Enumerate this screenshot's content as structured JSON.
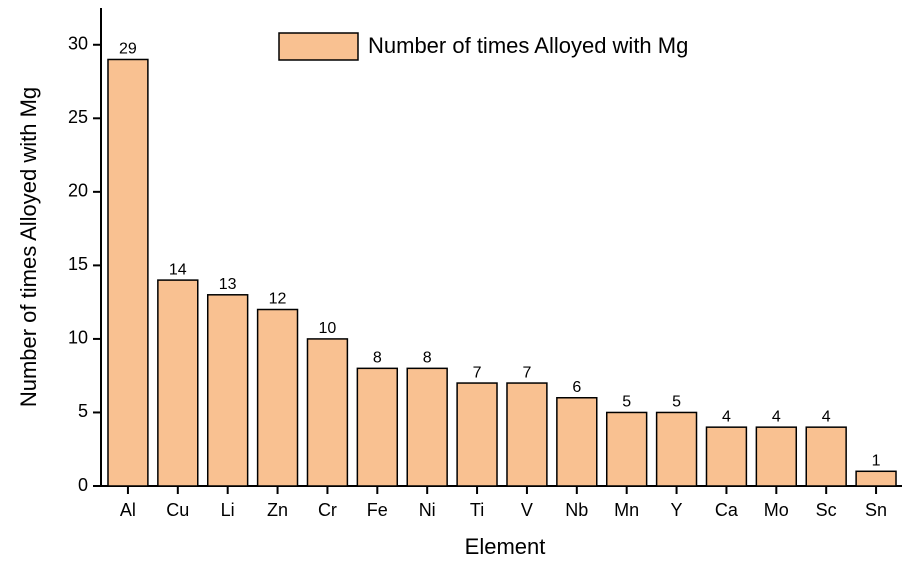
{
  "chart_data": {
    "type": "bar",
    "x_label": "Element",
    "y_label": "Number of times Alloyed with Mg",
    "categories": [
      "Al",
      "Cu",
      "Li",
      "Zn",
      "Cr",
      "Fe",
      "Ni",
      "Ti",
      "V",
      "Nb",
      "Mn",
      "Y",
      "Ca",
      "Mo",
      "Sc",
      "Sn"
    ],
    "series": [
      {
        "name": "Number of times Alloyed with Mg",
        "color": "#f9c191",
        "values": [
          29,
          14,
          13,
          12,
          10,
          8,
          8,
          7,
          7,
          6,
          5,
          5,
          4,
          4,
          4,
          1
        ]
      }
    ],
    "ylim": [
      0,
      32.5
    ],
    "yticks": [
      0,
      5,
      10,
      15,
      20,
      25,
      30
    ],
    "legend": "upper right",
    "grid": false
  }
}
